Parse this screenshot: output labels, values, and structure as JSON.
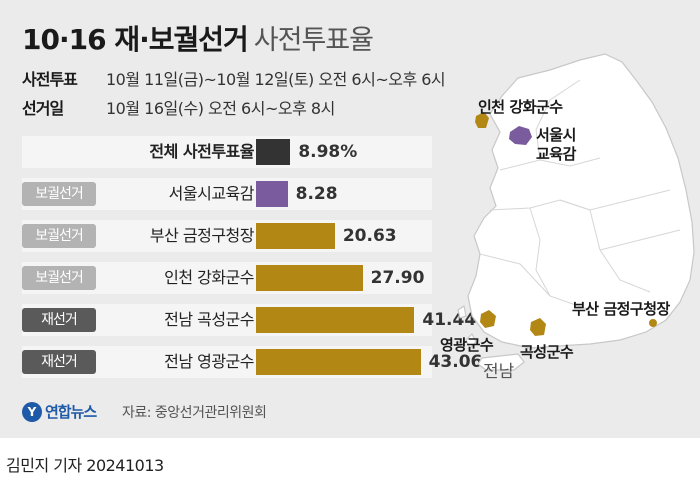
{
  "title": {
    "main": "10·16 재·보궐선거",
    "sub": "사전투표율"
  },
  "info": {
    "early_label": "사전투표",
    "early_value": "10월 11일(금)~10월 12일(토) 오전 6시~오후 6시",
    "election_label": "선거일",
    "election_value": "10월 16일(수) 오전 6시~오후 8시"
  },
  "colors": {
    "total": "#333333",
    "seoul": "#7a5b9e",
    "local": "#b38714"
  },
  "chart_data": {
    "type": "bar",
    "categories": [
      "전체 사전투표율",
      "서울시교육감",
      "부산 금정구청장",
      "인천 강화군수",
      "전남 곡성군수",
      "전남 영광군수"
    ],
    "badges": [
      "",
      "보궐선거",
      "보궐선거",
      "보궐선거",
      "재선거",
      "재선거"
    ],
    "values": [
      8.98,
      8.28,
      20.63,
      27.9,
      41.44,
      43.06
    ],
    "labels": [
      "8.98%",
      "8.28",
      "20.63",
      "27.90",
      "41.44",
      "43.06"
    ],
    "unit": "%"
  },
  "map": {
    "labels": {
      "incheon": "인천 강화군수",
      "seoul_line1": "서울시",
      "seoul_line2": "교육감",
      "busan": "부산 금정구청장",
      "yeonggwang": "영광군수",
      "gokseong": "곡성군수",
      "jeonnam": "전남"
    }
  },
  "footer": {
    "logo_mark": "Y",
    "logo_name": "연합뉴스",
    "source": "자료: 중앙선거관리위원회",
    "byline": "김민지 기자  20241013"
  }
}
